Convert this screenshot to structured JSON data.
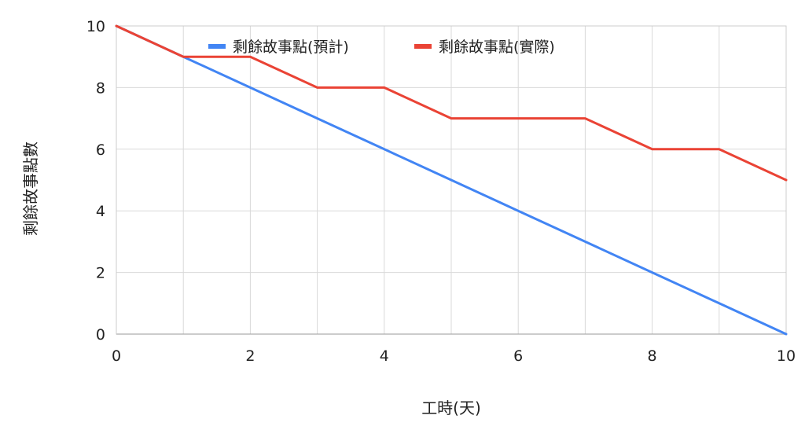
{
  "chart_data": {
    "type": "line",
    "title": "",
    "xlabel": "工時(天)",
    "ylabel": "剩餘故事點數",
    "xlim": [
      0,
      10
    ],
    "ylim": [
      0,
      10
    ],
    "x_ticks": [
      0,
      2,
      4,
      6,
      8,
      10
    ],
    "y_ticks": [
      0,
      2,
      4,
      6,
      8,
      10
    ],
    "grid": true,
    "legend_position": "top-center",
    "x": [
      0,
      1,
      2,
      3,
      4,
      5,
      6,
      7,
      8,
      9,
      10
    ],
    "series": [
      {
        "name": "剩餘故事點(預計)",
        "color": "#4285F4",
        "values": [
          10,
          9,
          8,
          7,
          6,
          5,
          4,
          3,
          2,
          1,
          0
        ]
      },
      {
        "name": "剩餘故事點(實際)",
        "color": "#EA4335",
        "values": [
          10,
          9,
          9,
          8,
          8,
          7,
          7,
          7,
          6,
          6,
          5
        ]
      }
    ]
  }
}
